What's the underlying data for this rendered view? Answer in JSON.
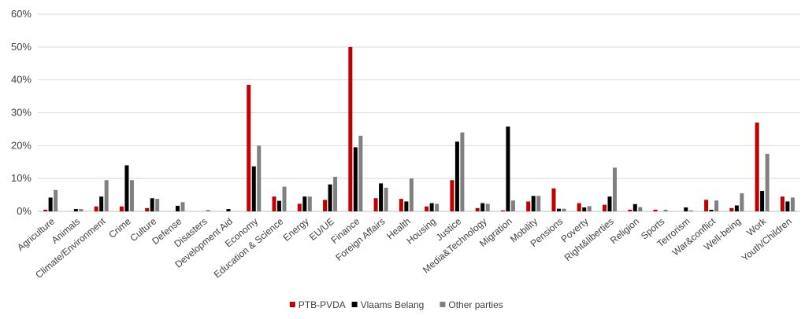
{
  "colors": {
    "series": [
      "#C00000",
      "#000000",
      "#808080"
    ],
    "grid": "#D9D9D9",
    "axis": "#BFBFBF",
    "text": "#404040"
  },
  "chart_data": {
    "type": "bar",
    "title": "",
    "xlabel": "",
    "ylabel": "",
    "ylim": [
      0,
      60
    ],
    "y_ticks": [
      0,
      10,
      20,
      30,
      40,
      50,
      60
    ],
    "y_tick_labels": [
      "0%",
      "10%",
      "20%",
      "30%",
      "40%",
      "50%",
      "60%"
    ],
    "grid": true,
    "legend_position": "bottom",
    "categories": [
      "Agriculture",
      "Animals",
      "Climate/Environment",
      "Crime",
      "Culture",
      "Defense",
      "Disasters",
      "Development Aid",
      "Economy",
      "Education & Science",
      "Energy",
      "EU/UE",
      "Finance",
      "Foreign Affairs",
      "Health",
      "Housing",
      "Justice",
      "Media&Technology",
      "Migration",
      "Mobility",
      "Pensions",
      "Poverty",
      "Right&liberties",
      "Religion",
      "Sports",
      "Terrorism",
      "War&conflict",
      "Well-being",
      "Work",
      "Youth/Children"
    ],
    "series": [
      {
        "name": "PTB-PVDA",
        "values": [
          0.5,
          0,
          1.5,
          1.5,
          1.0,
          0,
          0,
          0,
          38.5,
          4.5,
          2.3,
          3.5,
          50,
          4.0,
          3.8,
          1.5,
          9.5,
          1.0,
          0.3,
          3.0,
          7.0,
          2.5,
          2.0,
          0.5,
          0.5,
          0,
          3.5,
          1.0,
          27.0,
          4.5
        ]
      },
      {
        "name": "Vlaams Belang",
        "values": [
          4.2,
          0.7,
          4.5,
          14.0,
          4.0,
          1.7,
          0,
          0.7,
          13.7,
          3.2,
          4.5,
          8.2,
          19.5,
          8.5,
          3.0,
          2.5,
          21.2,
          2.5,
          25.8,
          4.7,
          0.8,
          1.2,
          4.5,
          2.2,
          0,
          1.2,
          0.5,
          1.8,
          6.2,
          3.0
        ]
      },
      {
        "name": "Other parties",
        "values": [
          6.5,
          0.7,
          9.5,
          9.5,
          3.8,
          2.8,
          0.4,
          0,
          20.0,
          7.5,
          4.5,
          10.5,
          23.0,
          7.2,
          10.0,
          2.3,
          24.0,
          2.3,
          3.3,
          4.7,
          0.8,
          1.6,
          13.3,
          1.3,
          0.5,
          0.3,
          3.3,
          5.5,
          17.5,
          4.2
        ]
      }
    ]
  }
}
